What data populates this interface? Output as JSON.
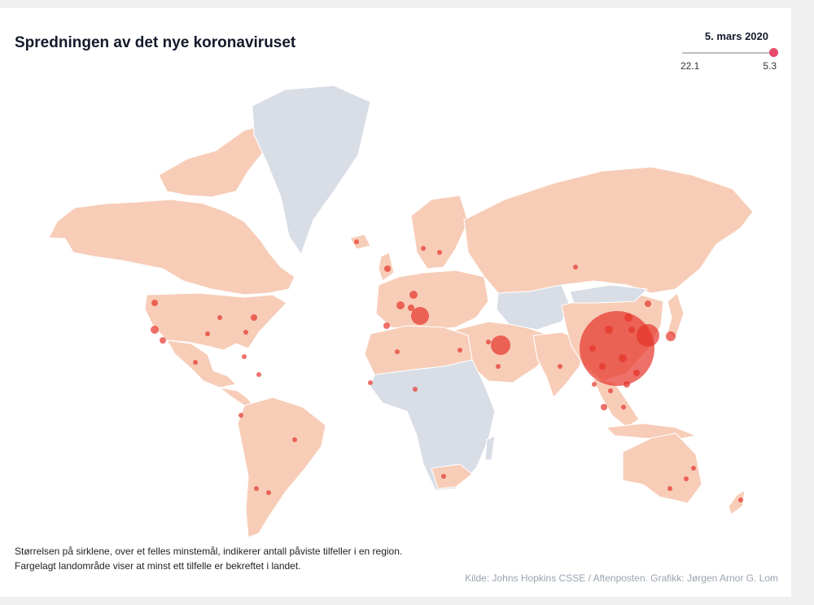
{
  "header": {
    "title": "Spredningen av det nye koronaviruset"
  },
  "slider": {
    "date": "5. mars 2020",
    "start_label": "22.1",
    "end_label": "5.3",
    "position": 1.0
  },
  "legend": {
    "case_fill": "#f7cdb8",
    "no_case_fill": "#d8dde6",
    "bubble_color": "#e5332a"
  },
  "footer": {
    "note_line1": "Størrelsen på sirklene, over et felles minstemål, indikerer antall påviste tilfeller i en region.",
    "note_line2": "Fargelagt landområde viser at minst ett tilfelle er bekreftet i landet.",
    "source": "Kilde: Johns Hopkins CSSE / Aftenposten. Grafikk: Jørgen Arnor G. Lom"
  }
}
